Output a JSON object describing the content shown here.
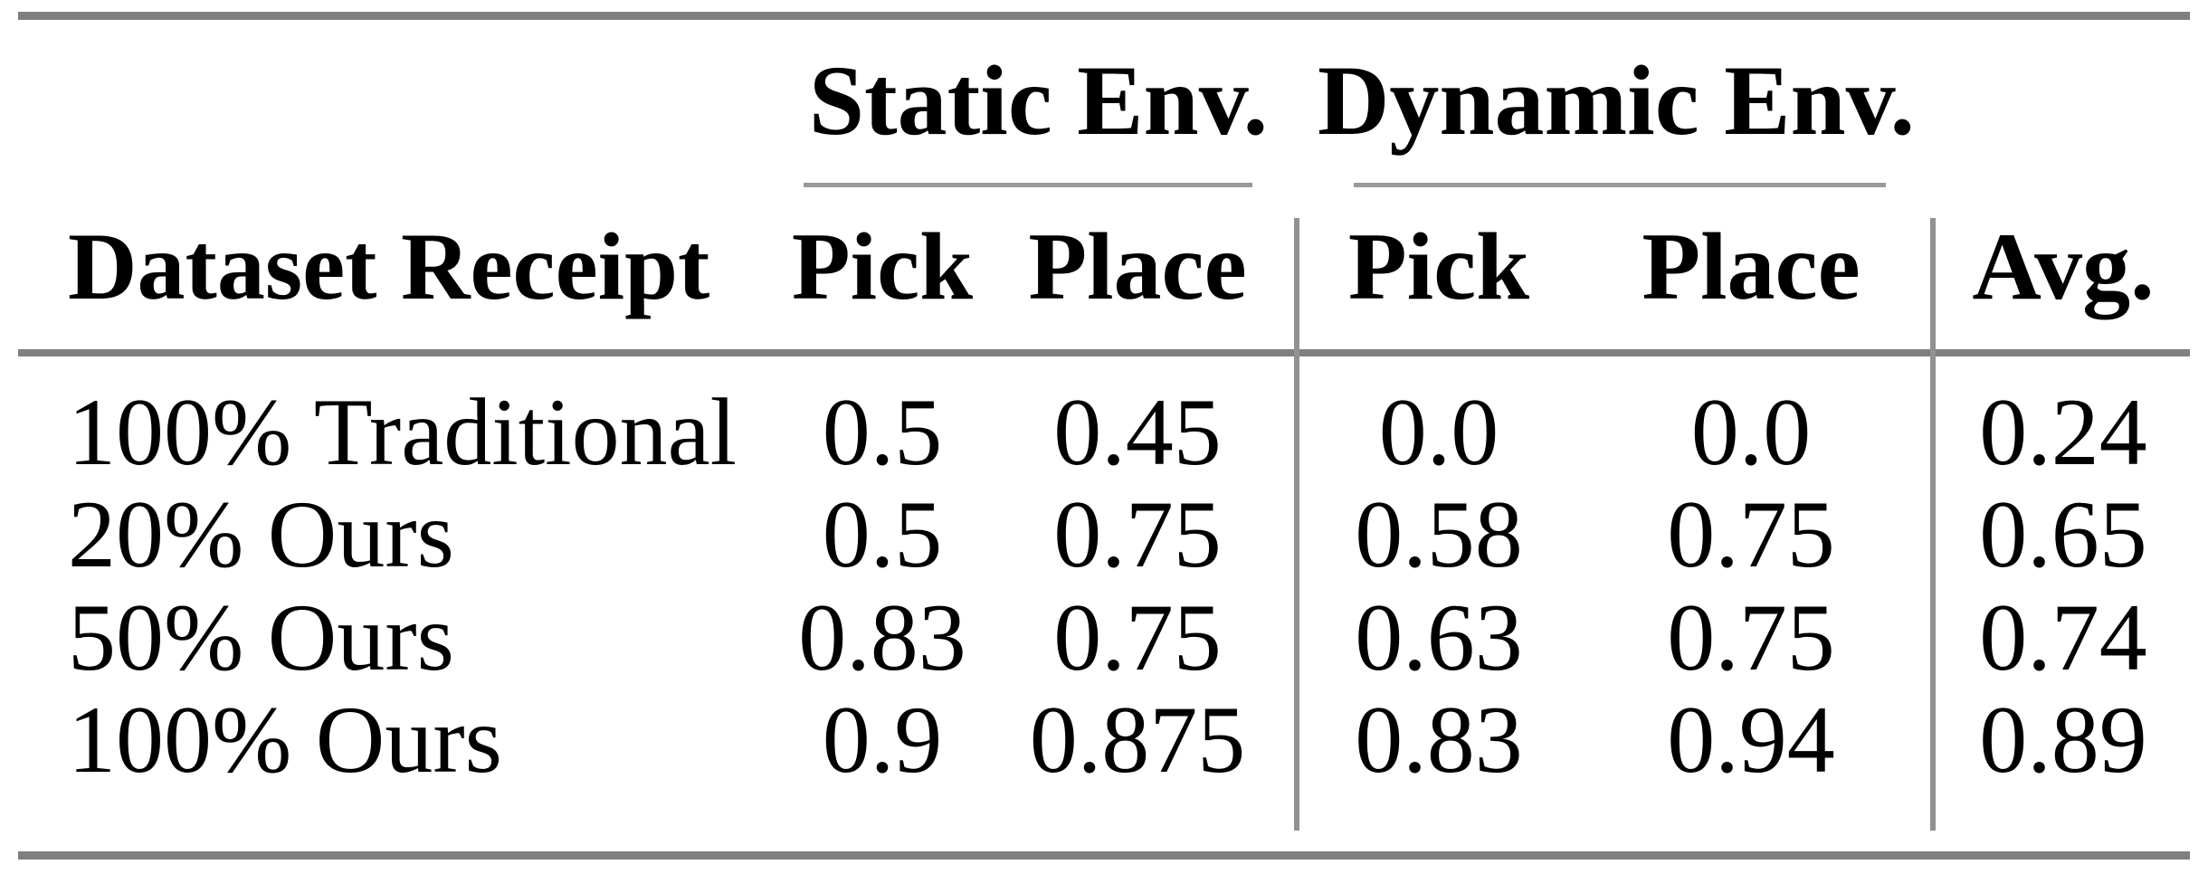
{
  "table": {
    "groups": [
      {
        "label": "Static Env."
      },
      {
        "label": "Dynamic Env."
      }
    ],
    "columns": {
      "row_header": "Dataset Receipt",
      "static_pick": "Pick",
      "static_place": "Place",
      "dynamic_pick": "Pick",
      "dynamic_place": "Place",
      "avg": "Avg."
    },
    "rows": [
      {
        "label": "100% Traditional",
        "values": [
          "0.5",
          "0.45",
          "0.0",
          "0.0",
          "0.24"
        ]
      },
      {
        "label": "20% Ours",
        "values": [
          "0.5",
          "0.75",
          "0.58",
          "0.75",
          "0.65"
        ]
      },
      {
        "label": "50% Ours",
        "values": [
          "0.83",
          "0.75",
          "0.63",
          "0.75",
          "0.74"
        ]
      },
      {
        "label": "100% Ours",
        "values": [
          "0.9",
          "0.875",
          "0.83",
          "0.94",
          "0.89"
        ]
      }
    ],
    "colors": {
      "text": "#000000",
      "heavy_rule": "#7f7f7f",
      "light_rule": "#999999",
      "background": "#ffffff"
    }
  },
  "chart_data": {
    "type": "table",
    "columns": [
      "Dataset Receipt",
      "Static Env. Pick",
      "Static Env. Place",
      "Dynamic Env. Pick",
      "Dynamic Env. Place",
      "Avg."
    ],
    "rows": [
      [
        "100% Traditional",
        0.5,
        0.45,
        0.0,
        0.0,
        0.24
      ],
      [
        "20% Ours",
        0.5,
        0.75,
        0.58,
        0.75,
        0.65
      ],
      [
        "50% Ours",
        0.83,
        0.75,
        0.63,
        0.75,
        0.74
      ],
      [
        "100% Ours",
        0.9,
        0.875,
        0.83,
        0.94,
        0.89
      ]
    ]
  }
}
